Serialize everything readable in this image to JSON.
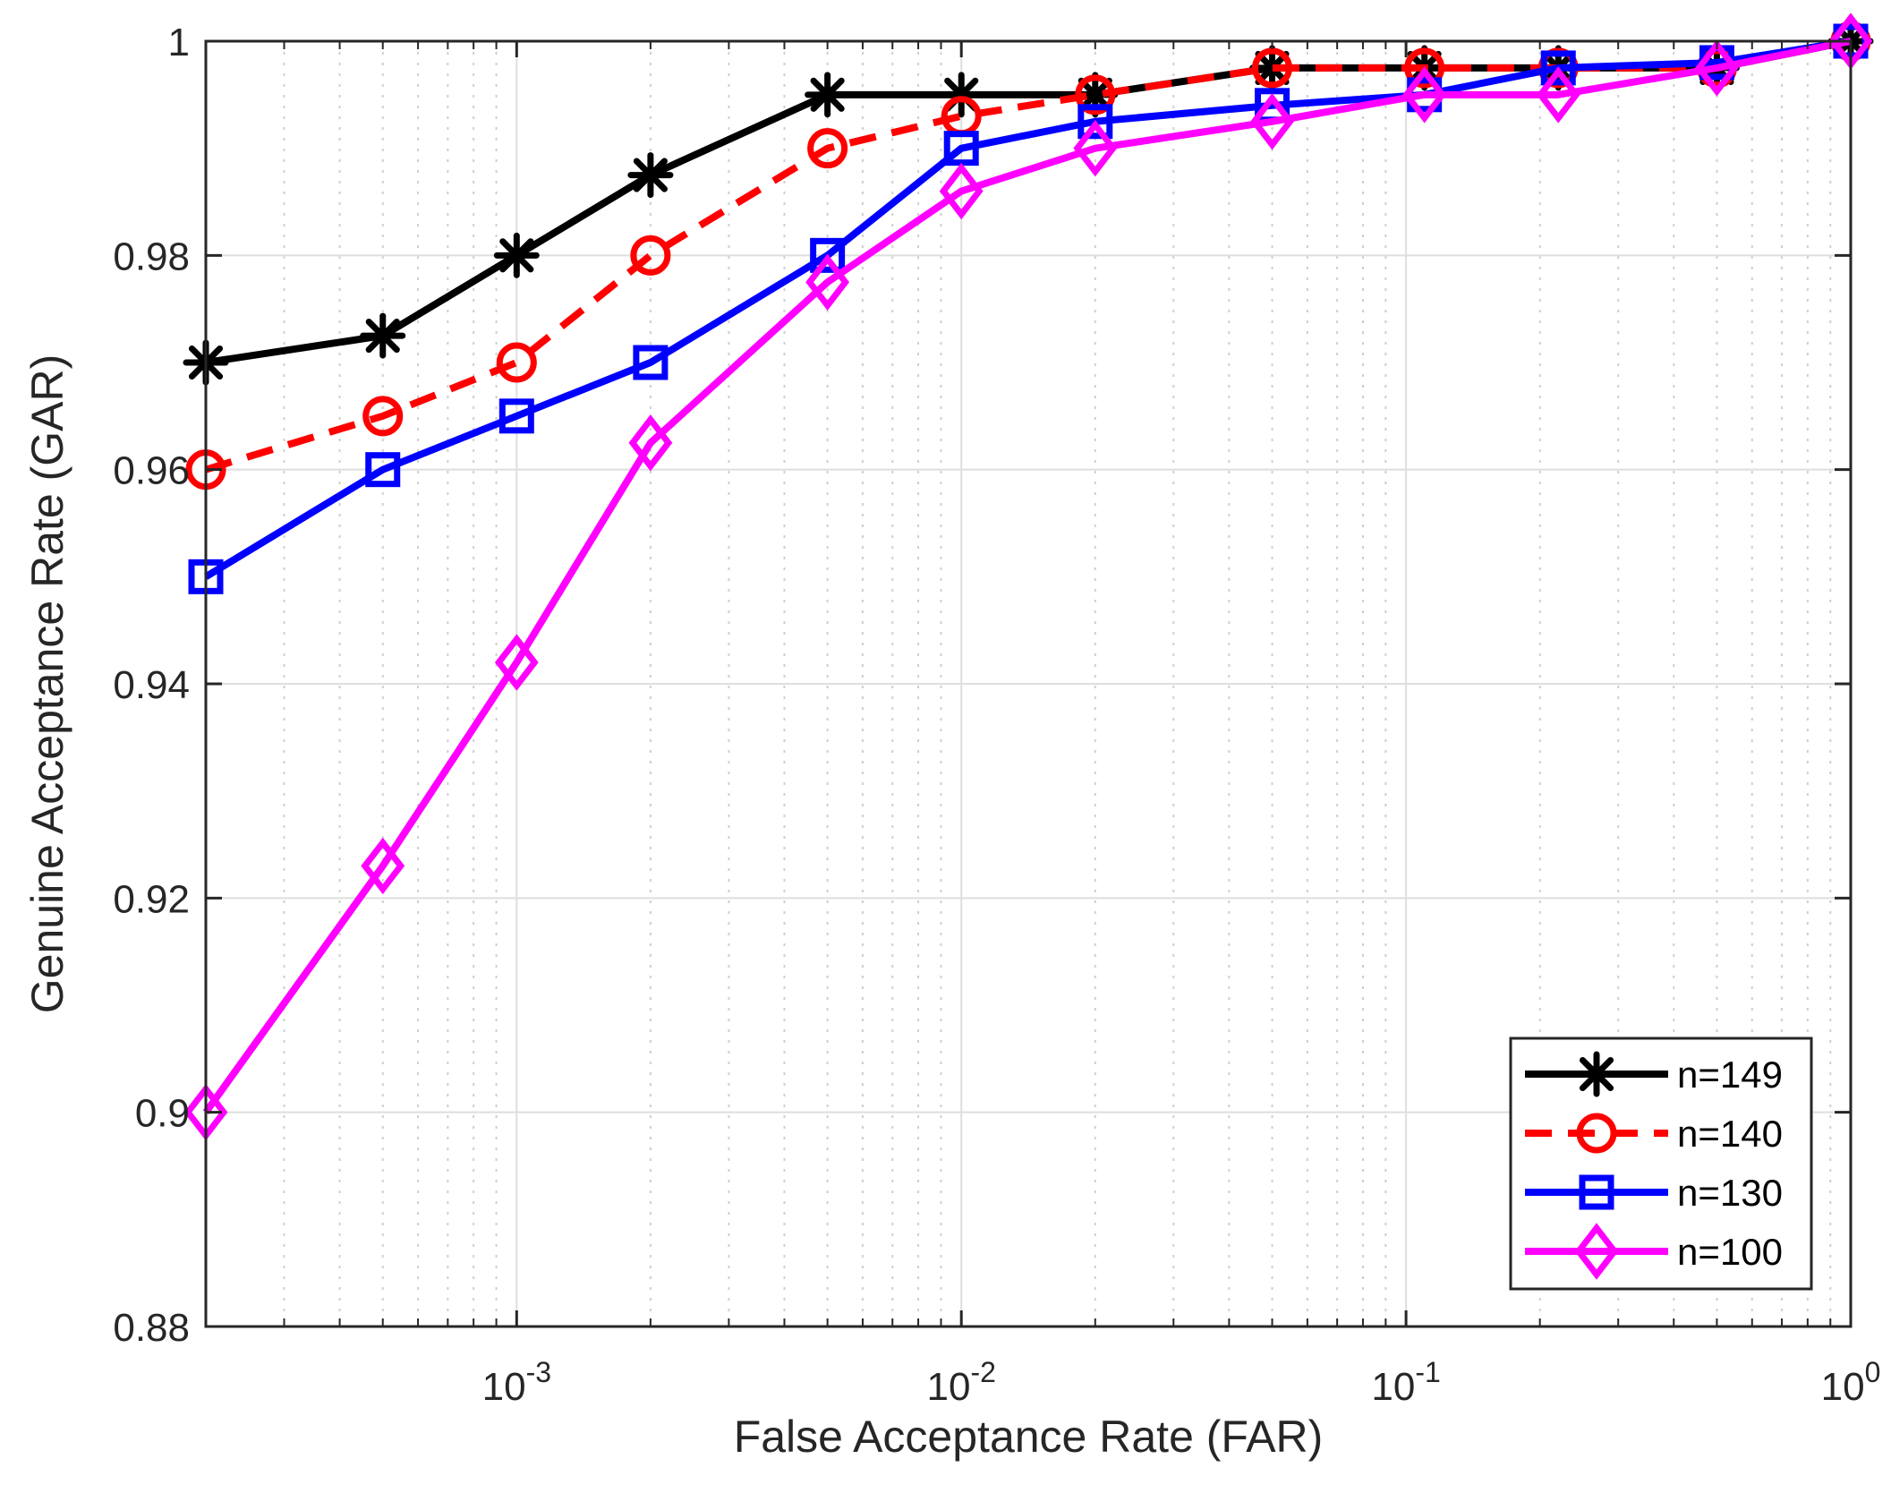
{
  "chart_data": {
    "type": "line",
    "xscale": "log",
    "title": "",
    "xlabel": "False Acceptance Rate (FAR)",
    "ylabel": "Genuine Acceptance Rate (GAR)",
    "xlim": [
      0.0002,
      1
    ],
    "ylim": [
      0.88,
      1
    ],
    "grid": true,
    "legend_position": "bottom-right",
    "x": [
      0.0002,
      0.0005,
      0.001,
      0.002,
      0.005,
      0.01,
      0.02,
      0.05,
      0.11,
      0.22,
      0.5,
      1
    ],
    "xticks": [
      {
        "label": "10",
        "exp": "-3",
        "value": 0.001
      },
      {
        "label": "10",
        "exp": "-2",
        "value": 0.01
      },
      {
        "label": "10",
        "exp": "-1",
        "value": 0.1
      },
      {
        "label": "10",
        "exp": "0",
        "value": 1
      }
    ],
    "yticks": [
      {
        "label": "0.88",
        "value": 0.88
      },
      {
        "label": "0.9",
        "value": 0.9
      },
      {
        "label": "0.92",
        "value": 0.92
      },
      {
        "label": "0.94",
        "value": 0.94
      },
      {
        "label": "0.96",
        "value": 0.96
      },
      {
        "label": "0.98",
        "value": 0.98
      },
      {
        "label": "1",
        "value": 1.0
      }
    ],
    "series": [
      {
        "name": "n=149",
        "color": "#000000",
        "dash": false,
        "marker": "asterisk",
        "values": [
          0.97,
          0.9725,
          0.98,
          0.9875,
          0.995,
          0.995,
          0.995,
          0.9975,
          0.9975,
          0.9975,
          0.9975,
          1.0
        ]
      },
      {
        "name": "n=140",
        "color": "#ff0000",
        "dash": true,
        "marker": "circle",
        "values": [
          0.96,
          0.965,
          0.97,
          0.98,
          0.99,
          0.993,
          0.995,
          0.9975,
          0.9975,
          0.9975,
          0.9975,
          1.0
        ]
      },
      {
        "name": "n=130",
        "color": "#0000ff",
        "dash": false,
        "marker": "square",
        "values": [
          0.95,
          0.96,
          0.965,
          0.97,
          0.98,
          0.99,
          0.9925,
          0.994,
          0.995,
          0.9975,
          0.998,
          1.0
        ]
      },
      {
        "name": "n=100",
        "color": "#ff00ff",
        "dash": false,
        "marker": "diamond",
        "values": [
          0.9,
          0.923,
          0.942,
          0.9625,
          0.9775,
          0.986,
          0.99,
          0.9925,
          0.995,
          0.995,
          0.9975,
          1.0
        ]
      }
    ]
  }
}
